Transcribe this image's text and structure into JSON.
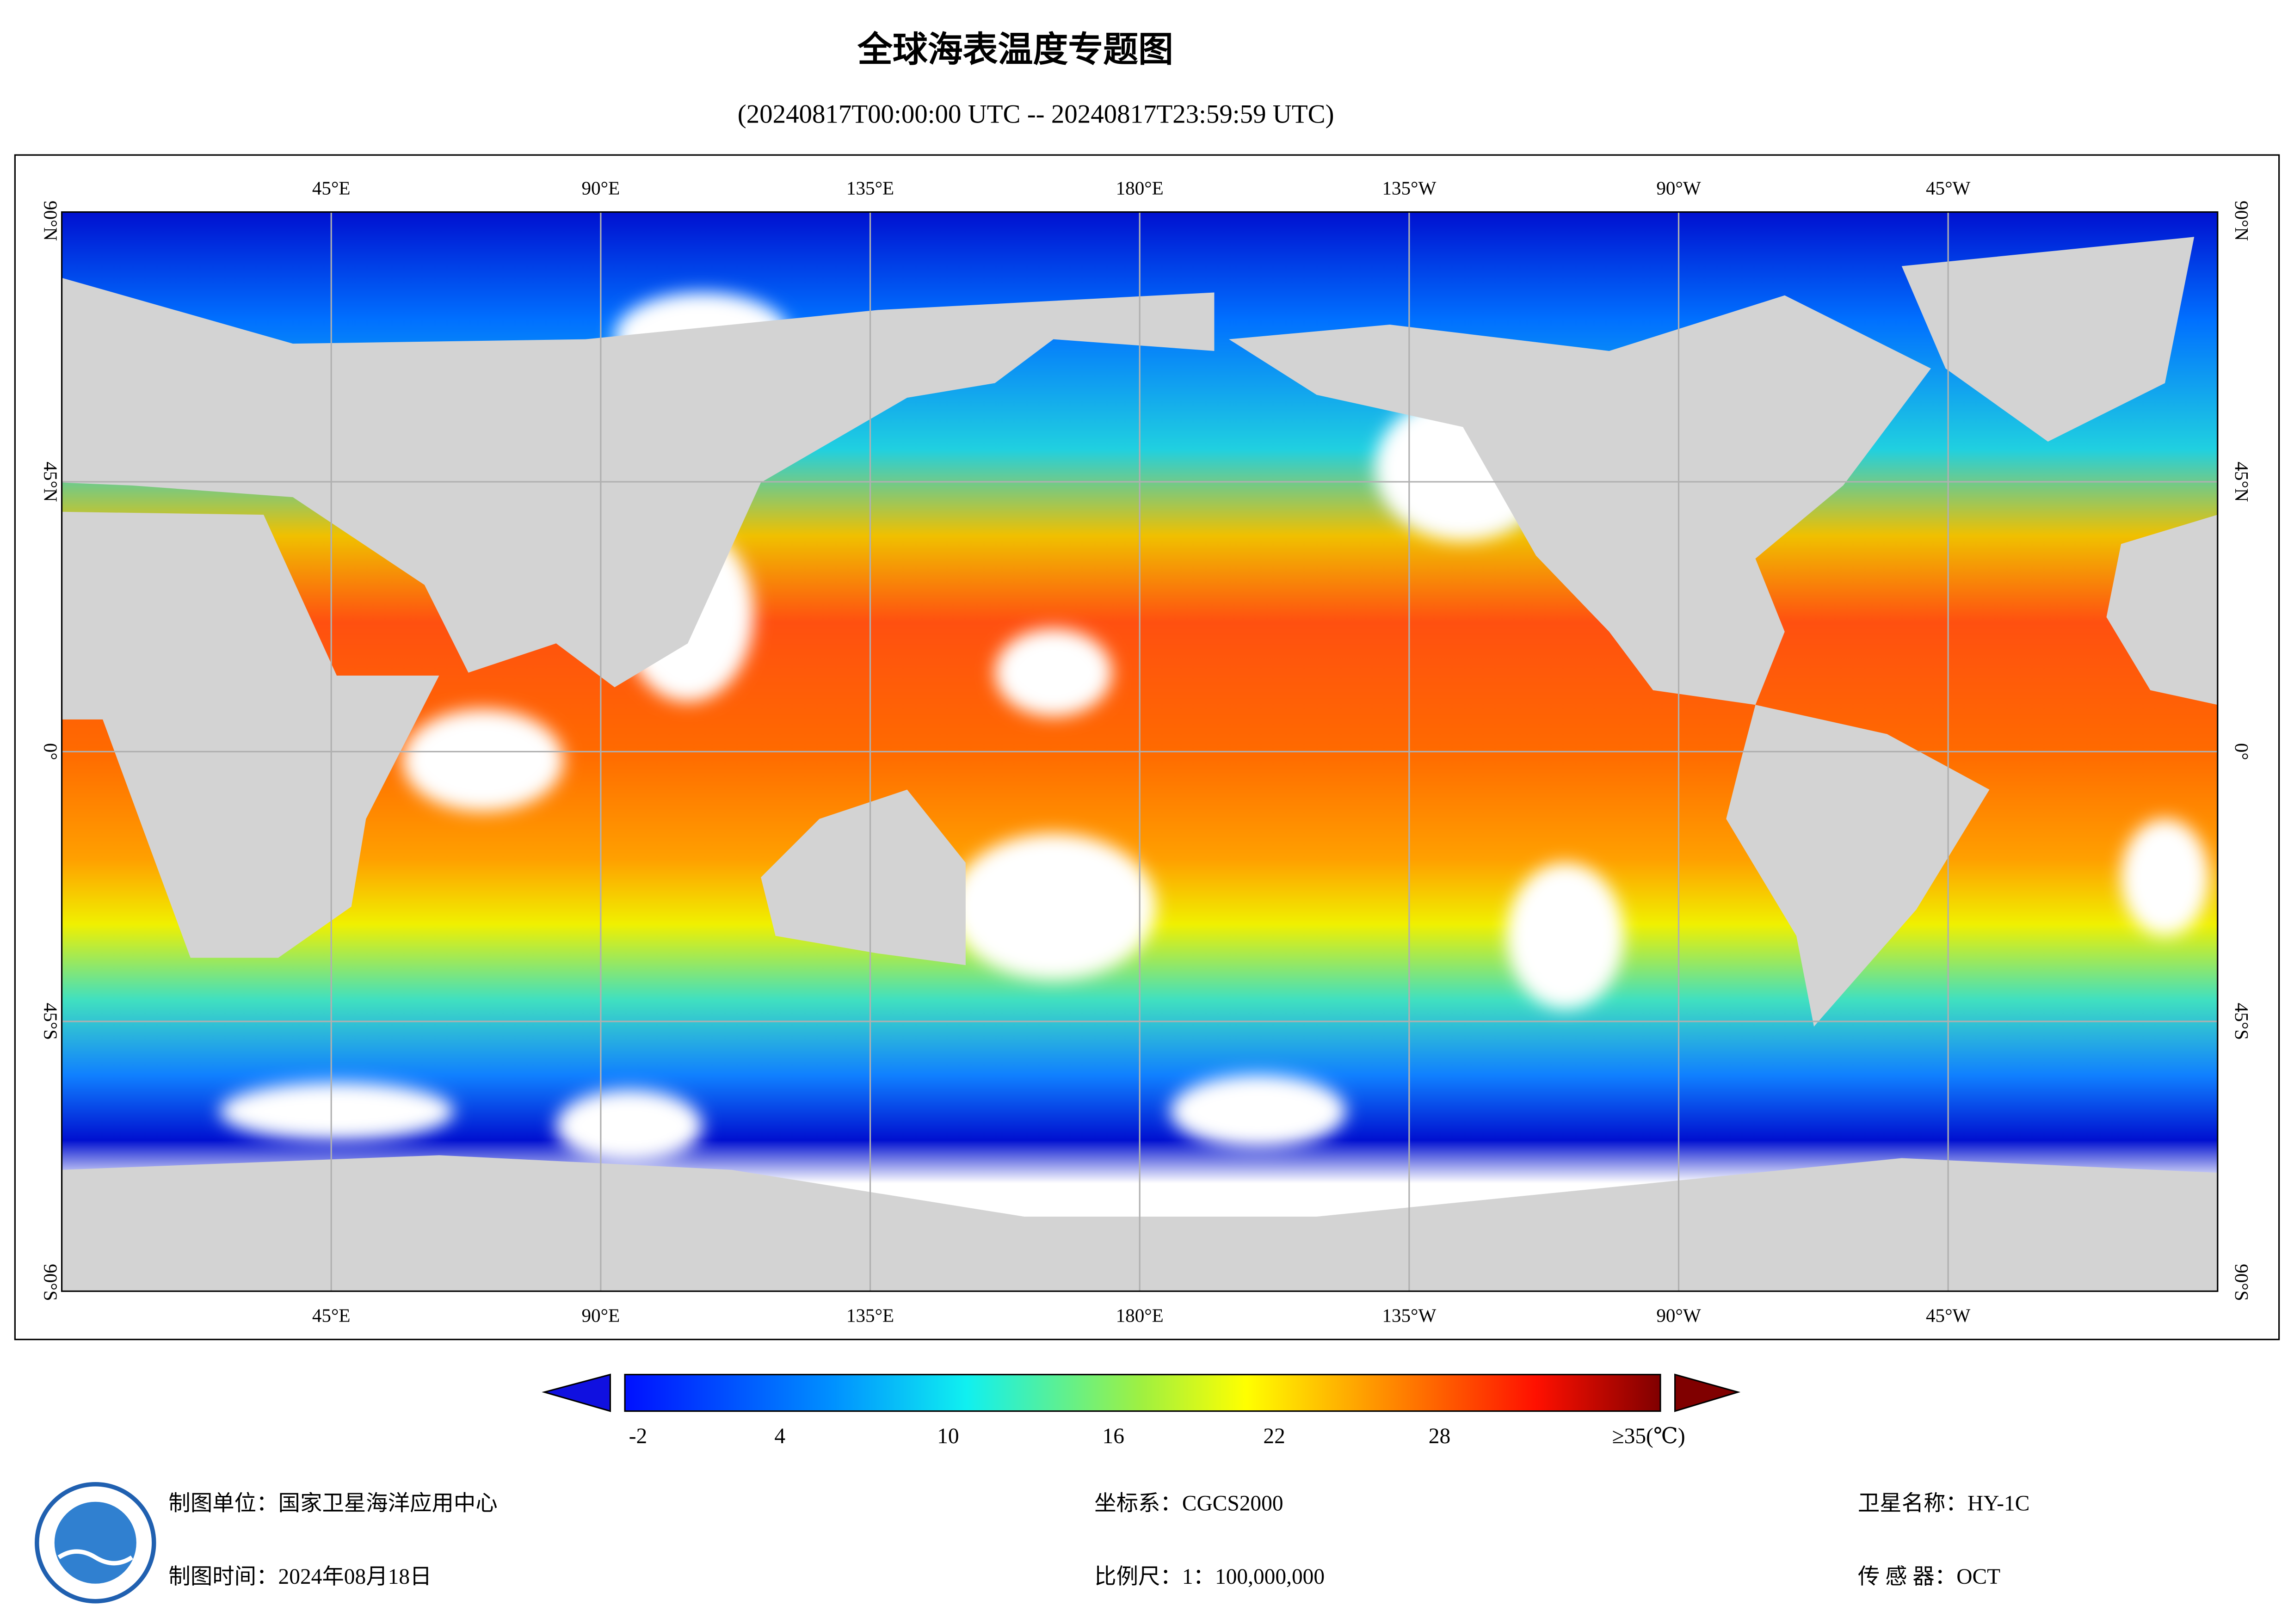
{
  "header": {
    "title": "全球海表温度专题图",
    "subtitle": "(20240817T00:00:00 UTC -- 20240817T23:59:59 UTC)"
  },
  "map": {
    "lon_labels": [
      "45°E",
      "90°E",
      "135°E",
      "180°E",
      "135°W",
      "90°W",
      "45°W"
    ],
    "lat_labels": [
      "90°N",
      "45°N",
      "0°",
      "45°S",
      "90°S"
    ]
  },
  "colorbar": {
    "labels": [
      "-2",
      "4",
      "10",
      "16",
      "22",
      "28",
      "≥35(℃)"
    ]
  },
  "footer": {
    "unit": "制图单位：国家卫星海洋应用中心",
    "date": "制图时间：2024年08月18日",
    "crs": "坐标系：CGCS2000",
    "scale": "比例尺：1：100,000,000",
    "satellite": "卫星名称：HY-1C",
    "sensor": "传 感 器：OCT"
  }
}
